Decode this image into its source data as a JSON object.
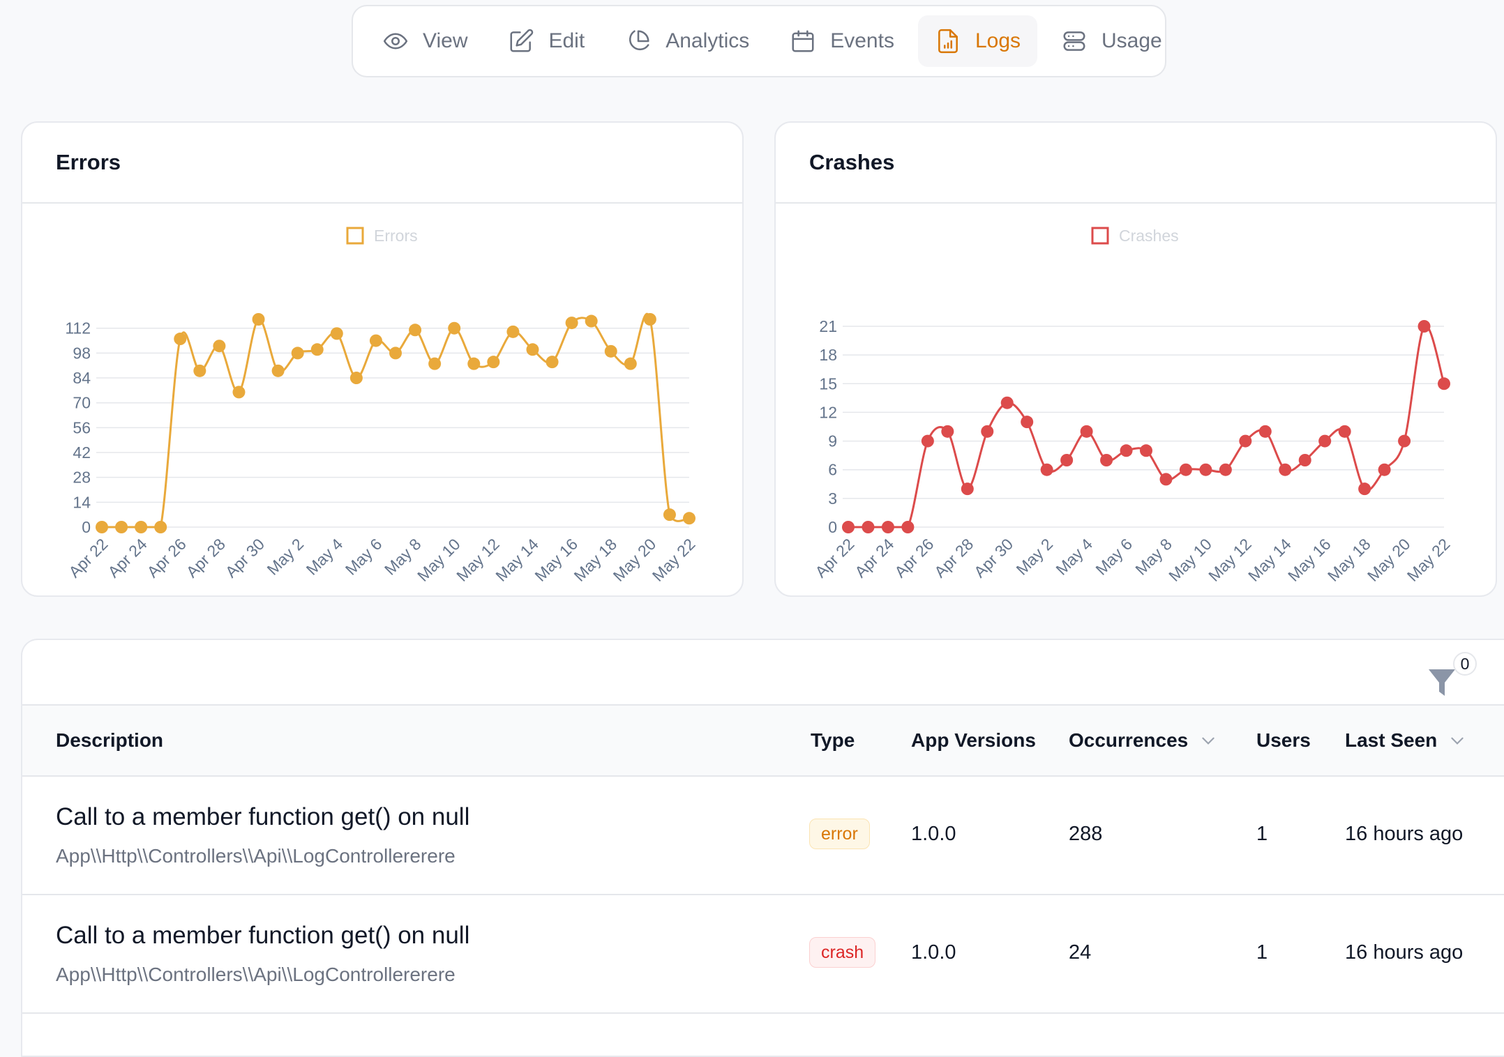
{
  "tabs": [
    {
      "label": "View",
      "icon": "eye-icon",
      "active": false
    },
    {
      "label": "Edit",
      "icon": "edit-icon",
      "active": false
    },
    {
      "label": "Analytics",
      "icon": "pie-chart-icon",
      "active": false
    },
    {
      "label": "Events",
      "icon": "calendar-icon",
      "active": false
    },
    {
      "label": "Logs",
      "icon": "file-chart-icon",
      "active": true
    },
    {
      "label": "Usage",
      "icon": "server-icon",
      "active": false
    }
  ],
  "colors": {
    "errors": "#e9a93b",
    "crashes": "#dc4b4b",
    "active_tab": "#d97706"
  },
  "chart_data": [
    {
      "type": "line",
      "title": "Errors",
      "legend": "Errors",
      "x": [
        "Apr 22",
        "Apr 23",
        "Apr 24",
        "Apr 25",
        "Apr 26",
        "Apr 27",
        "Apr 28",
        "Apr 29",
        "Apr 30",
        "May 1",
        "May 2",
        "May 3",
        "May 4",
        "May 5",
        "May 6",
        "May 7",
        "May 8",
        "May 9",
        "May 10",
        "May 11",
        "May 12",
        "May 13",
        "May 14",
        "May 15",
        "May 16",
        "May 17",
        "May 18",
        "May 19",
        "May 20",
        "May 21",
        "May 22"
      ],
      "x_tick_labels": [
        "Apr 22",
        "Apr 24",
        "Apr 26",
        "Apr 28",
        "Apr 30",
        "May 2",
        "May 4",
        "May 6",
        "May 8",
        "May 10",
        "May 12",
        "May 14",
        "May 16",
        "May 18",
        "May 20",
        "May 22"
      ],
      "values": [
        0,
        0,
        0,
        0,
        106,
        88,
        102,
        76,
        117,
        88,
        98,
        100,
        109,
        84,
        105,
        98,
        111,
        92,
        112,
        92,
        93,
        110,
        100,
        93,
        115,
        116,
        99,
        92,
        117,
        7,
        5
      ],
      "yticks": [
        0,
        14,
        28,
        42,
        56,
        70,
        84,
        98,
        112
      ],
      "ylim": [
        0,
        117
      ]
    },
    {
      "type": "line",
      "title": "Crashes",
      "legend": "Crashes",
      "x": [
        "Apr 22",
        "Apr 23",
        "Apr 24",
        "Apr 25",
        "Apr 26",
        "Apr 27",
        "Apr 28",
        "Apr 29",
        "Apr 30",
        "May 1",
        "May 2",
        "May 3",
        "May 4",
        "May 5",
        "May 6",
        "May 7",
        "May 8",
        "May 9",
        "May 10",
        "May 11",
        "May 12",
        "May 13",
        "May 14",
        "May 15",
        "May 16",
        "May 17",
        "May 18",
        "May 19",
        "May 20",
        "May 21",
        "May 22"
      ],
      "x_tick_labels": [
        "Apr 22",
        "Apr 24",
        "Apr 26",
        "Apr 28",
        "Apr 30",
        "May 2",
        "May 4",
        "May 6",
        "May 8",
        "May 10",
        "May 12",
        "May 14",
        "May 16",
        "May 18",
        "May 20",
        "May 22"
      ],
      "values": [
        0,
        0,
        0,
        0,
        9,
        10,
        4,
        10,
        13,
        11,
        6,
        7,
        10,
        7,
        8,
        8,
        5,
        6,
        6,
        6,
        9,
        10,
        6,
        7,
        9,
        10,
        4,
        6,
        9,
        21,
        15
      ],
      "yticks": [
        0,
        3,
        6,
        9,
        12,
        15,
        18,
        21
      ],
      "ylim": [
        0,
        21
      ]
    }
  ],
  "table": {
    "filter_count": "0",
    "headers": {
      "description": "Description",
      "type": "Type",
      "app_versions": "App Versions",
      "occurrences": "Occurrences",
      "users": "Users",
      "last_seen": "Last Seen"
    },
    "rows": [
      {
        "title": "Call to a member function get() on null",
        "subtitle": "App\\\\Http\\\\Controllers\\\\Api\\\\LogControllererere",
        "type": "error",
        "version": "1.0.0",
        "occurrences": "288",
        "users": "1",
        "last_seen": "16 hours ago"
      },
      {
        "title": "Call to a member function get() on null",
        "subtitle": "App\\\\Http\\\\Controllers\\\\Api\\\\LogControllererere",
        "type": "crash",
        "version": "1.0.0",
        "occurrences": "24",
        "users": "1",
        "last_seen": "16 hours ago"
      }
    ]
  }
}
